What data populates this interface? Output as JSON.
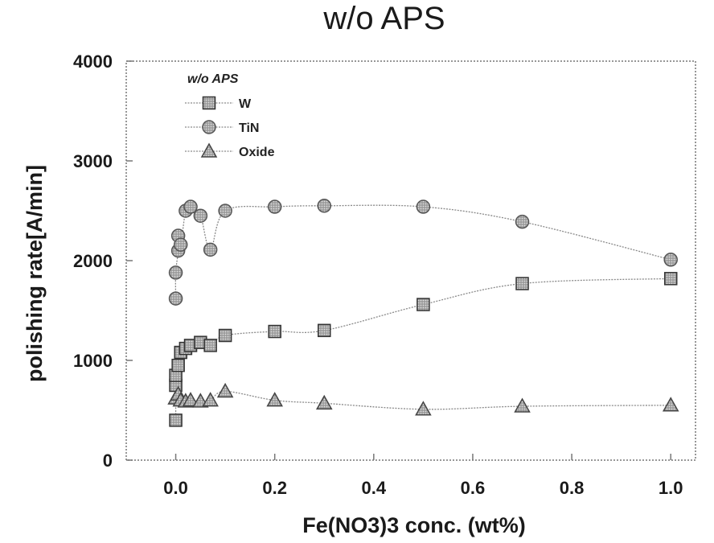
{
  "chart_data": {
    "type": "line",
    "title": "w/o APS",
    "xlabel": "Fe(NO3)3 conc. (wt%)",
    "ylabel": "polishing rate[A/min]",
    "xlim": [
      -0.1,
      1.05
    ],
    "ylim": [
      0,
      4000
    ],
    "xticks": [
      "0.0",
      "0.2",
      "0.4",
      "0.6",
      "0.8",
      "1.0"
    ],
    "yticks": [
      "0",
      "1000",
      "2000",
      "3000",
      "4000"
    ],
    "legend": {
      "title": "w/o APS",
      "placement": "top-left"
    },
    "grid": false,
    "series": [
      {
        "name": "W",
        "marker": "square",
        "color": "#3a3a3a",
        "x": [
          0.0,
          0.0,
          0.0,
          0.005,
          0.01,
          0.02,
          0.03,
          0.05,
          0.07,
          0.1,
          0.2,
          0.3,
          0.5,
          0.7,
          1.0
        ],
        "y": [
          400,
          750,
          850,
          950,
          1080,
          1120,
          1150,
          1180,
          1150,
          1250,
          1290,
          1300,
          1560,
          1770,
          1820
        ]
      },
      {
        "name": "TiN",
        "marker": "circle",
        "color": "#9a9a9a",
        "x": [
          0.0,
          0.0,
          0.005,
          0.005,
          0.01,
          0.02,
          0.03,
          0.05,
          0.07,
          0.1,
          0.2,
          0.3,
          0.5,
          0.7,
          1.0
        ],
        "y": [
          1620,
          1880,
          2100,
          2250,
          2160,
          2500,
          2540,
          2450,
          2110,
          2500,
          2540,
          2550,
          2540,
          2390,
          2010
        ]
      },
      {
        "name": "Oxide",
        "marker": "triangle",
        "color": "#5a5a5a",
        "x": [
          0.0,
          0.005,
          0.01,
          0.02,
          0.03,
          0.05,
          0.07,
          0.1,
          0.2,
          0.3,
          0.5,
          0.7,
          1.0
        ],
        "y": [
          620,
          660,
          600,
          590,
          600,
          590,
          600,
          690,
          600,
          570,
          510,
          540,
          550
        ]
      }
    ]
  }
}
